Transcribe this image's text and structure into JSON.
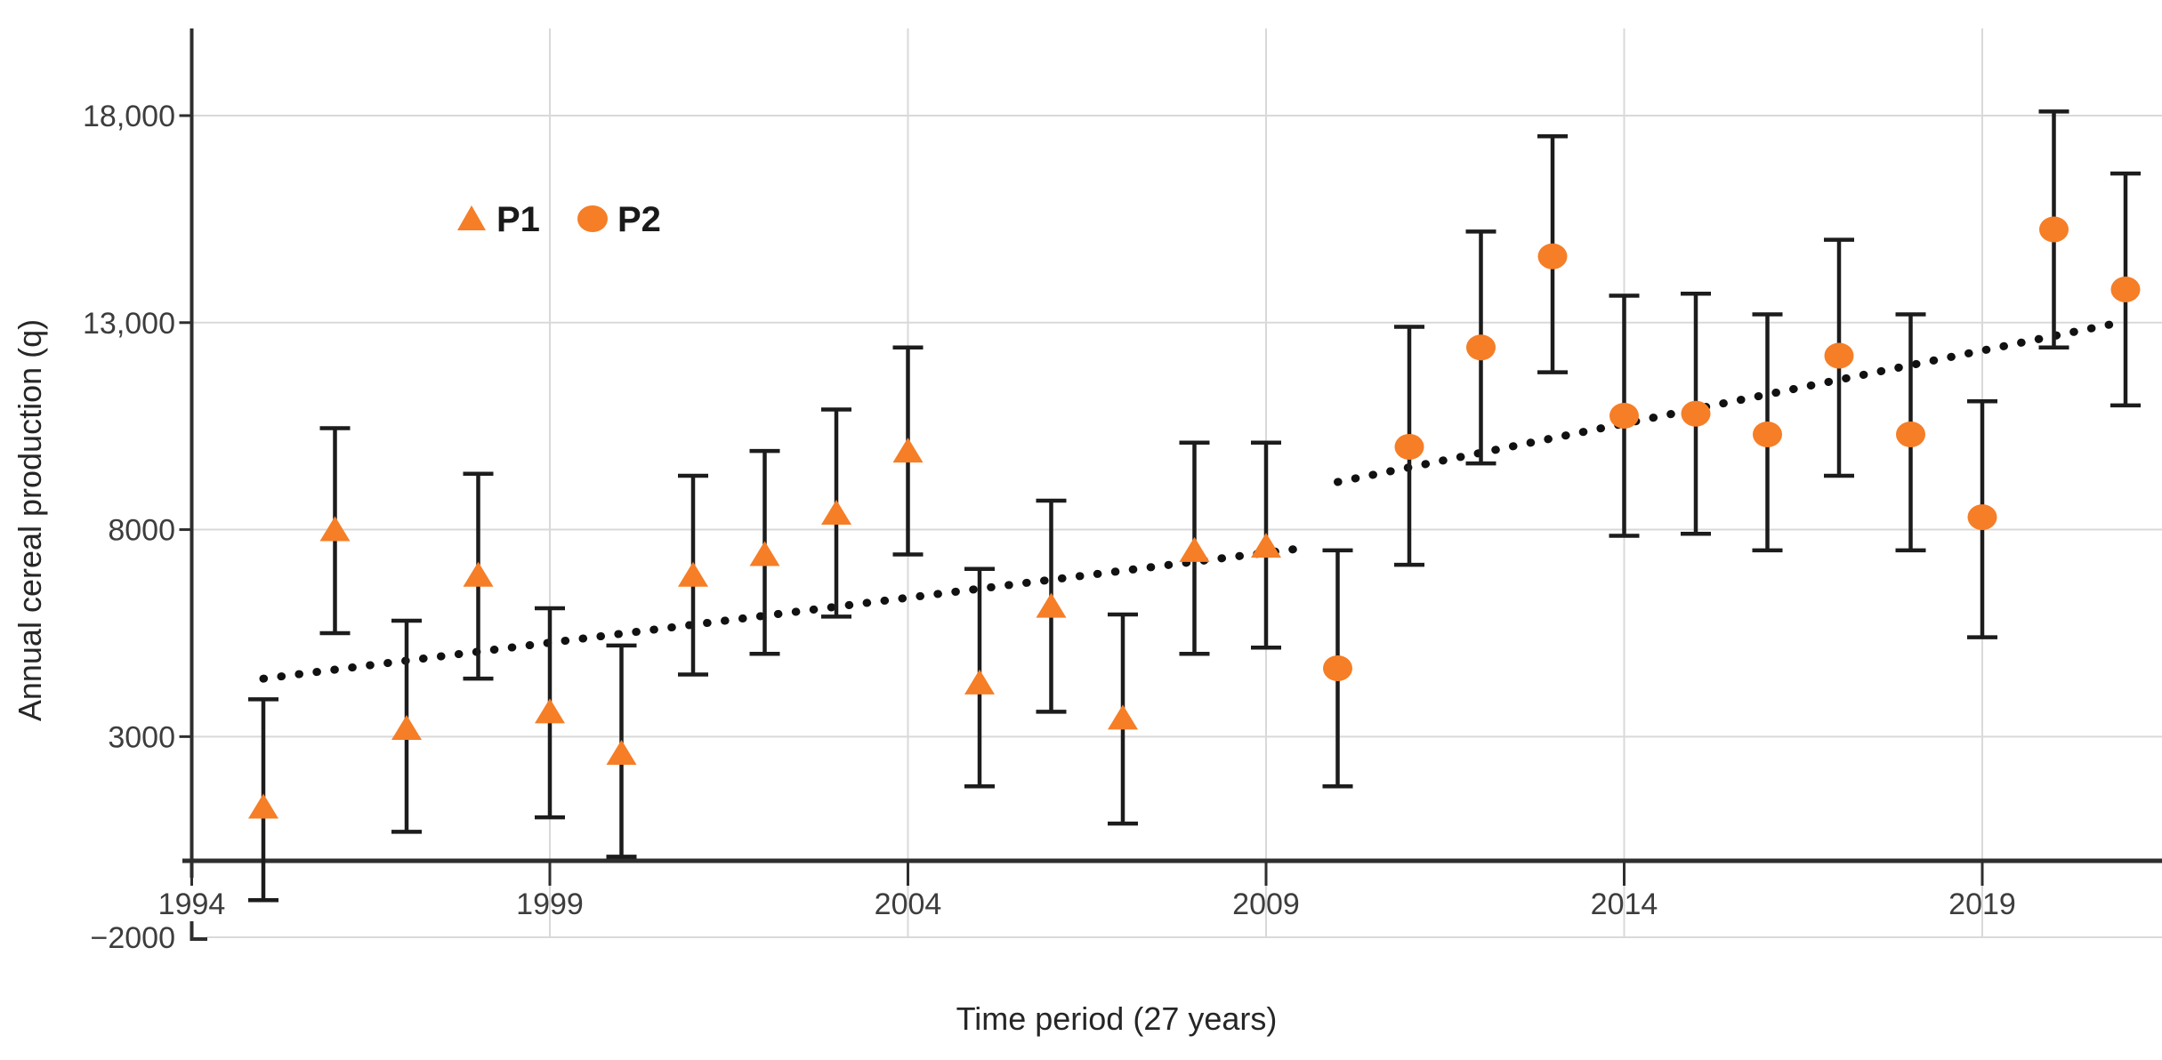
{
  "chart_data": {
    "type": "scatter",
    "title": "",
    "xlabel": "Time period (27 years)",
    "ylabel": "Annual cereal production (q)",
    "legend_position": "top-left-inside",
    "grid": true,
    "axis_break_at_origin": true,
    "ylim": [
      -2000,
      20300
    ],
    "xlim": [
      1994,
      2021.5
    ],
    "colors": {
      "marker_orange": "#F57E27",
      "error_bar": "#1c1c1c",
      "trendline": "#111111",
      "gridline": "#d9d9d9",
      "axis_line": "#2e2e2e",
      "tick_text": "#3d3d3d"
    },
    "y_axis": {
      "ticks": [
        {
          "label": "18,000",
          "value": 18000
        },
        {
          "label": "13,000",
          "value": 13000
        },
        {
          "label": "8000",
          "value": 8000
        },
        {
          "label": "3000",
          "value": 3000
        },
        {
          "label": "−2000",
          "value": -2000
        }
      ]
    },
    "x_axis": {
      "ticks": [
        {
          "label": "1994",
          "year": 1994
        },
        {
          "label": "1999",
          "year": 1999
        },
        {
          "label": "2004",
          "year": 2004
        },
        {
          "label": "2009",
          "year": 2009
        },
        {
          "label": "2014",
          "year": 2014
        },
        {
          "label": "2019",
          "year": 2019
        }
      ]
    },
    "series": [
      {
        "name": "P1",
        "marker": "triangle",
        "points": [
          {
            "year": 1995,
            "value": 1300,
            "low": -950,
            "high": 3900
          },
          {
            "year": 1996,
            "value": 8000,
            "low": 5500,
            "high": 10450
          },
          {
            "year": 1997,
            "value": 3200,
            "low": 700,
            "high": 5800
          },
          {
            "year": 1998,
            "value": 6900,
            "low": 4400,
            "high": 9350
          },
          {
            "year": 1999,
            "value": 3600,
            "low": 1050,
            "high": 6100
          },
          {
            "year": 2000,
            "value": 2600,
            "low": 100,
            "high": 5200
          },
          {
            "year": 2001,
            "value": 6900,
            "low": 4500,
            "high": 9300
          },
          {
            "year": 2002,
            "value": 7400,
            "low": 5000,
            "high": 9900
          },
          {
            "year": 2003,
            "value": 8400,
            "low": 5900,
            "high": 10900
          },
          {
            "year": 2004,
            "value": 9900,
            "low": 7400,
            "high": 12400
          },
          {
            "year": 2005,
            "value": 4300,
            "low": 1800,
            "high": 7050
          },
          {
            "year": 2006,
            "value": 6150,
            "low": 3600,
            "high": 8700
          },
          {
            "year": 2007,
            "value": 3450,
            "low": 900,
            "high": 5950
          },
          {
            "year": 2008,
            "value": 7500,
            "low": 5000,
            "high": 10100
          },
          {
            "year": 2009,
            "value": 7600,
            "low": 5150,
            "high": 10100
          }
        ]
      },
      {
        "name": "P2",
        "marker": "circle",
        "points": [
          {
            "year": 2010,
            "value": 4650,
            "low": 1800,
            "high": 7500
          },
          {
            "year": 2011,
            "value": 10000,
            "low": 7150,
            "high": 12900
          },
          {
            "year": 2012,
            "value": 12400,
            "low": 9600,
            "high": 15200
          },
          {
            "year": 2013,
            "value": 14600,
            "low": 11800,
            "high": 17500
          },
          {
            "year": 2014,
            "value": 10750,
            "low": 7850,
            "high": 13650
          },
          {
            "year": 2015,
            "value": 10800,
            "low": 7900,
            "high": 13700
          },
          {
            "year": 2016,
            "value": 10300,
            "low": 7500,
            "high": 13200
          },
          {
            "year": 2017,
            "value": 12200,
            "low": 9300,
            "high": 15000
          },
          {
            "year": 2018,
            "value": 10300,
            "low": 7500,
            "high": 13200
          },
          {
            "year": 2019,
            "value": 8300,
            "low": 5400,
            "high": 11100
          },
          {
            "year": 2020,
            "value": 15250,
            "low": 12400,
            "high": 18100
          },
          {
            "year": 2021,
            "value": 13800,
            "low": 11000,
            "high": 16600
          }
        ]
      }
    ],
    "trendlines": [
      {
        "name": "P1 trend",
        "style": "dotted",
        "year1": 1995.0,
        "value1": 4400,
        "year2": 2009.5,
        "value2": 7550
      },
      {
        "name": "P2 trend",
        "style": "dotted",
        "year1": 2010.0,
        "value1": 9150,
        "year2": 2021.0,
        "value2": 13030
      }
    ]
  }
}
